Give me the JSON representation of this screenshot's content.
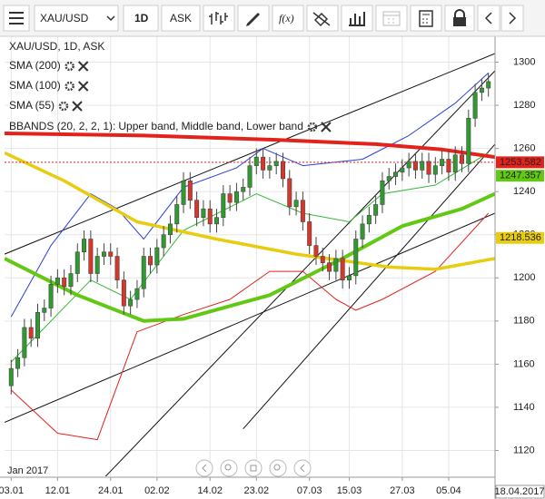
{
  "toolbar": {
    "symbol": "XAU/USD",
    "interval": "1D",
    "side": "ASK",
    "function": "f(x)"
  },
  "chart_data": {
    "type": "candlestick",
    "title": "XAU/USD, 1D, ASK",
    "open": [
      1150,
      1158,
      1163,
      1177,
      1172,
      1184,
      1186,
      1197,
      1200,
      1196,
      1202,
      1212,
      1218,
      1202,
      1210,
      1212,
      1210,
      1199,
      1187,
      1190,
      1195,
      1210,
      1206,
      1214,
      1220,
      1225,
      1234,
      1245,
      1236,
      1228,
      1232,
      1225,
      1228,
      1239,
      1235,
      1240,
      1242,
      1252,
      1256,
      1250,
      1252,
      1254,
      1246,
      1233,
      1236,
      1226,
      1215,
      1210,
      1207,
      1203,
      1209,
      1199,
      1201,
      1218,
      1225,
      1229,
      1234,
      1245,
      1247,
      1249,
      1251,
      1254,
      1250,
      1254,
      1248,
      1252,
      1255,
      1249,
      1257,
      1253,
      1274,
      1286,
      1288
    ],
    "high": [
      1162,
      1167,
      1181,
      1181,
      1188,
      1190,
      1201,
      1204,
      1204,
      1206,
      1216,
      1222,
      1222,
      1214,
      1216,
      1216,
      1214,
      1203,
      1194,
      1199,
      1214,
      1214,
      1218,
      1224,
      1229,
      1238,
      1249,
      1249,
      1240,
      1236,
      1236,
      1232,
      1243,
      1243,
      1244,
      1246,
      1256,
      1260,
      1260,
      1256,
      1258,
      1258,
      1250,
      1240,
      1240,
      1230,
      1219,
      1214,
      1211,
      1213,
      1213,
      1205,
      1222,
      1229,
      1233,
      1238,
      1249,
      1251,
      1253,
      1255,
      1258,
      1258,
      1258,
      1258,
      1256,
      1259,
      1259,
      1261,
      1261,
      1278,
      1290,
      1292,
      1295
    ],
    "low": [
      1146,
      1154,
      1159,
      1168,
      1168,
      1180,
      1182,
      1193,
      1192,
      1192,
      1198,
      1208,
      1198,
      1198,
      1206,
      1206,
      1195,
      1183,
      1183,
      1186,
      1191,
      1202,
      1202,
      1210,
      1216,
      1221,
      1230,
      1232,
      1224,
      1224,
      1221,
      1221,
      1224,
      1231,
      1231,
      1236,
      1238,
      1248,
      1246,
      1246,
      1248,
      1242,
      1229,
      1229,
      1222,
      1211,
      1206,
      1203,
      1199,
      1199,
      1195,
      1195,
      1197,
      1214,
      1221,
      1225,
      1230,
      1241,
      1243,
      1245,
      1247,
      1246,
      1246,
      1244,
      1244,
      1248,
      1245,
      1245,
      1249,
      1249,
      1270,
      1282,
      1284
    ],
    "close": [
      1158,
      1163,
      1177,
      1172,
      1184,
      1186,
      1197,
      1200,
      1196,
      1202,
      1212,
      1218,
      1202,
      1210,
      1212,
      1210,
      1199,
      1187,
      1190,
      1195,
      1210,
      1206,
      1214,
      1220,
      1225,
      1234,
      1245,
      1236,
      1228,
      1232,
      1225,
      1228,
      1239,
      1235,
      1240,
      1242,
      1252,
      1256,
      1250,
      1252,
      1254,
      1246,
      1233,
      1236,
      1226,
      1215,
      1210,
      1207,
      1203,
      1209,
      1199,
      1201,
      1218,
      1225,
      1229,
      1234,
      1245,
      1247,
      1249,
      1251,
      1254,
      1250,
      1254,
      1248,
      1252,
      1255,
      1249,
      1257,
      1253,
      1274,
      1286,
      1288,
      1291
    ],
    "up_color": "#2f9a2f",
    "down_color": "#d9352a",
    "xlim": [
      -1,
      73
    ],
    "xticks": [
      {
        "value": 0,
        "label": "03.01"
      },
      {
        "value": 7,
        "label": "12.01"
      },
      {
        "value": 15,
        "label": "24.01"
      },
      {
        "value": 22,
        "label": "02.02"
      },
      {
        "value": 30,
        "label": "14.02"
      },
      {
        "value": 37,
        "label": "23.02"
      },
      {
        "value": 45,
        "label": "07.03"
      },
      {
        "value": 51,
        "label": "15.03"
      },
      {
        "value": 59,
        "label": "27.03"
      },
      {
        "value": 66,
        "label": "05.04"
      }
    ],
    "x_start_label": "Jan 2017",
    "x_end_label": "18.04.2017",
    "ylim": [
      1108,
      1312
    ],
    "yticks": [
      1120,
      1140,
      1160,
      1180,
      1200,
      1220,
      1240,
      1260,
      1280,
      1300
    ],
    "grid": true,
    "indicators": [
      {
        "name": "SMA (200)",
        "color": "#e3221c",
        "width": 4,
        "x": [
          -1,
          20,
          40,
          55,
          65,
          73
        ],
        "values": [
          1267,
          1266,
          1264,
          1262,
          1259.5,
          1256
        ]
      },
      {
        "name": "SMA (100)",
        "color": "#e8cc10",
        "width": 3.5,
        "x": [
          -1,
          8,
          19,
          31,
          43,
          57,
          64,
          73
        ],
        "values": [
          1258,
          1245,
          1226,
          1218,
          1211,
          1205,
          1204,
          1209
        ]
      },
      {
        "name": "SMA (55)",
        "color": "#62c814",
        "width": 4,
        "x": [
          -1,
          10,
          20,
          26,
          39,
          50,
          59,
          68,
          73
        ],
        "values": [
          1209,
          1192,
          1180,
          1181,
          1192,
          1209,
          1224,
          1232,
          1239
        ]
      }
    ],
    "bbands": {
      "name": "BBANDS (20, 2, 2, 1):",
      "series": [
        {
          "name": "Upper band,",
          "color": "#2a3fd6",
          "x": [
            0,
            6,
            12,
            16,
            20,
            26,
            34,
            38,
            44,
            53,
            60,
            67,
            72
          ],
          "values": [
            1182,
            1215,
            1239,
            1232,
            1218,
            1242,
            1251,
            1260,
            1252,
            1255,
            1266,
            1281,
            1295
          ]
        },
        {
          "name": "Middle band,",
          "color": "#35b835",
          "x": [
            0,
            12,
            18,
            26,
            37,
            44,
            51,
            56,
            64,
            72
          ],
          "values": [
            1161,
            1199,
            1190,
            1222,
            1239,
            1230,
            1226,
            1239,
            1243,
            1258
          ]
        },
        {
          "name": "Lower band",
          "color": "#e3221c",
          "x": [
            0,
            7,
            13,
            19,
            26,
            33,
            39,
            44,
            49,
            52,
            56,
            64,
            72
          ],
          "values": [
            1148,
            1128,
            1125,
            1175,
            1183,
            1190,
            1203,
            1203,
            1190,
            1185,
            1190,
            1203,
            1230
          ]
        }
      ]
    },
    "trendlines": [
      {
        "color": "#111",
        "x": [
          -1,
          73
        ],
        "values": [
          1211,
          1304
        ]
      },
      {
        "color": "#111",
        "x": [
          -1,
          73
        ],
        "values": [
          1133,
          1230
        ]
      },
      {
        "color": "#111",
        "x": [
          13,
          73
        ],
        "values": [
          1104,
          1296
        ]
      },
      {
        "color": "#111",
        "x": [
          35,
          73
        ],
        "values": [
          1130,
          1262
        ]
      }
    ],
    "price_labels": [
      {
        "value": 1253.582,
        "color": "#e3221c"
      },
      {
        "value": 1247.357,
        "color": "#62c814"
      },
      {
        "value": 1218.536,
        "color": "#e8cc10"
      }
    ]
  }
}
